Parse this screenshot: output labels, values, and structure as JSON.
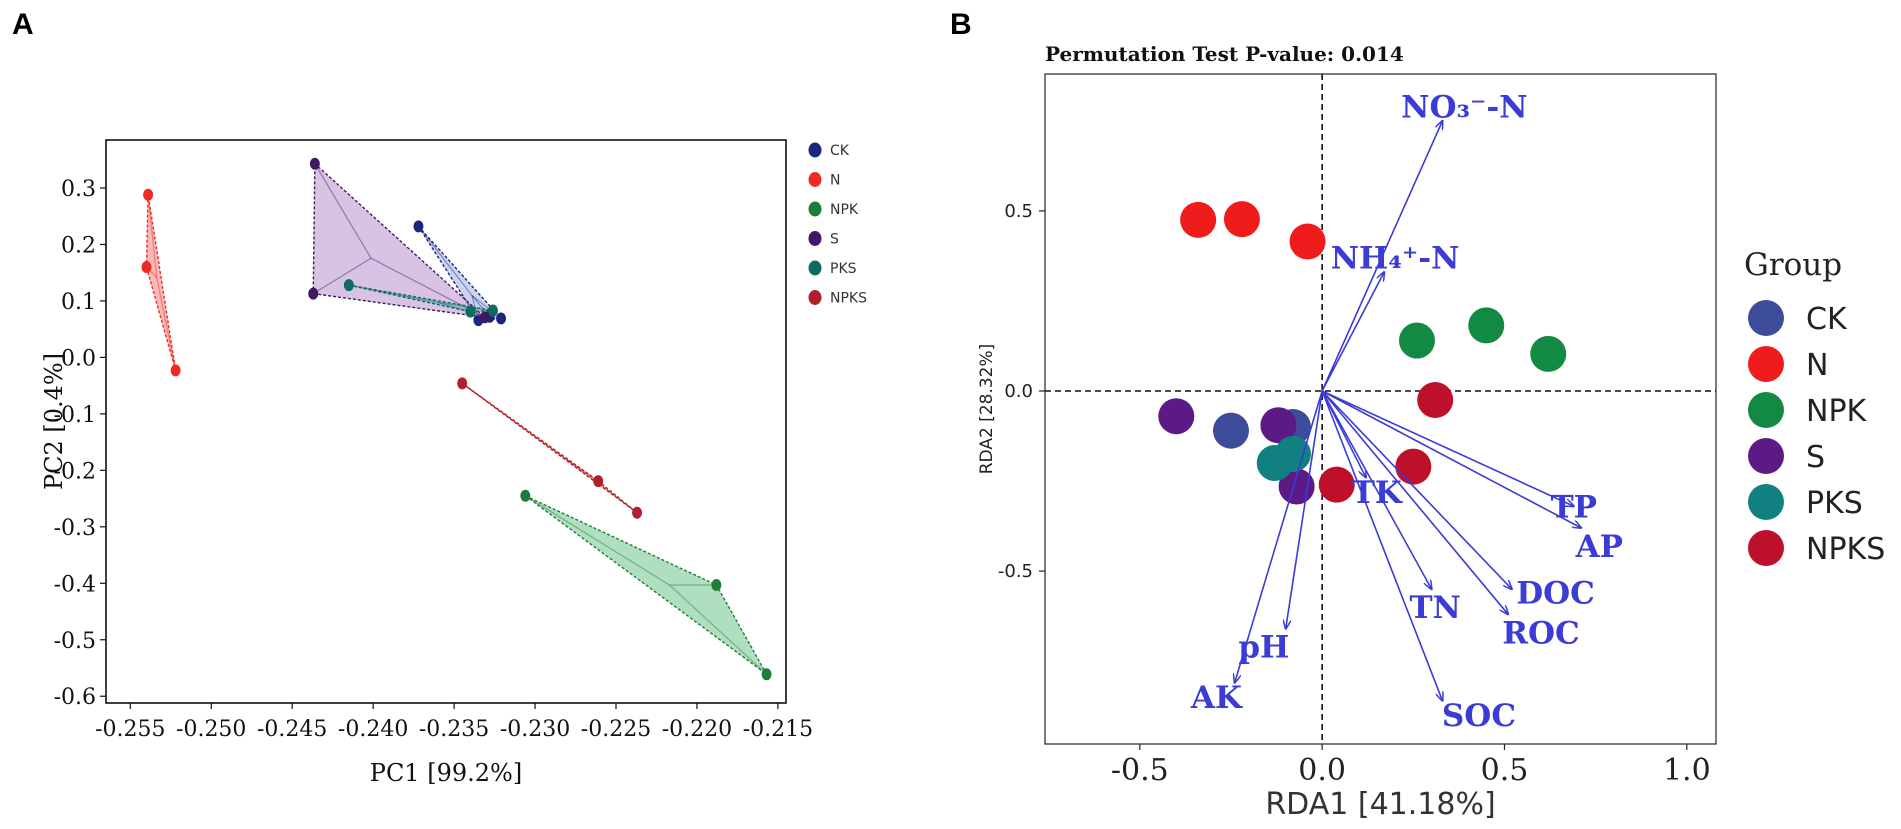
{
  "panel_labels": {
    "a": "A",
    "b": "B"
  },
  "chart_data": [
    {
      "type": "scatter",
      "panel": "A",
      "title": "",
      "xlabel": "PC1 [99.2%]",
      "ylabel": "PC2 [0.4%]",
      "xlim": [
        -0.2565,
        -0.2145
      ],
      "ylim": [
        -0.612,
        0.385
      ],
      "xticks": [
        -0.255,
        -0.25,
        -0.245,
        -0.24,
        -0.235,
        -0.23,
        -0.225,
        -0.22,
        -0.215
      ],
      "xtick_labels": [
        "-0.255",
        "-0.250",
        "-0.245",
        "-0.240",
        "-0.235",
        "-0.230",
        "-0.225",
        "-0.220",
        "-0.215"
      ],
      "yticks": [
        0.3,
        0.2,
        0.1,
        0.0,
        -0.1,
        -0.2,
        -0.3,
        -0.4,
        -0.5,
        -0.6
      ],
      "ytick_labels": [
        "0.3",
        "0.2",
        "0.1",
        "0.0",
        "-0.1",
        "-0.2",
        "-0.3",
        "-0.4",
        "-0.5",
        "-0.6"
      ],
      "legend": "right",
      "groups": [
        {
          "name": "CK",
          "color": "#1a2580",
          "points": [
            [
              -0.2372,
              0.232
            ],
            [
              -0.2335,
              0.066
            ],
            [
              -0.2321,
              0.069
            ],
            [
              -0.2328,
              0.072
            ]
          ],
          "hull_fill": "#8fa0d6"
        },
        {
          "name": "N",
          "color": "#ee2a24",
          "points": [
            [
              -0.2539,
              0.288
            ],
            [
              -0.254,
              0.16
            ],
            [
              -0.2522,
              -0.023
            ]
          ],
          "hull_fill": "#ee6660"
        },
        {
          "name": "NPK",
          "color": "#1e7d36",
          "points": [
            [
              -0.2306,
              -0.245
            ],
            [
              -0.2188,
              -0.403
            ],
            [
              -0.2157,
              -0.561
            ]
          ],
          "hull_fill": "#4fb771"
        },
        {
          "name": "S",
          "color": "#3e1a63",
          "points": [
            [
              -0.2436,
              0.343
            ],
            [
              -0.2437,
              0.113
            ],
            [
              -0.2331,
              0.071
            ]
          ],
          "hull_fill": "#a979c4"
        },
        {
          "name": "PKS",
          "color": "#0f6a60",
          "points": [
            [
              -0.2415,
              0.128
            ],
            [
              -0.234,
              0.081
            ],
            [
              -0.2326,
              0.083
            ]
          ],
          "hull_fill": "#5aa49d"
        },
        {
          "name": "NPKS",
          "color": "#b0202a",
          "points": [
            [
              -0.2345,
              -0.046
            ],
            [
              -0.2261,
              -0.219
            ],
            [
              -0.2237,
              -0.275
            ]
          ],
          "hull_fill": "#e06169"
        }
      ]
    },
    {
      "type": "scatter",
      "panel": "B",
      "title": "Permutation Test P-value: 0.014",
      "xlabel": "RDA1 [41.18%]",
      "ylabel": "RDA2 [28.32%]",
      "xlim": [
        -0.76,
        1.08
      ],
      "ylim": [
        -0.98,
        0.88
      ],
      "xticks": [
        -0.5,
        0.0,
        0.5,
        1.0
      ],
      "xtick_labels": [
        "-0.5",
        "0.0",
        "0.5",
        "1.0"
      ],
      "yticks": [
        0.5,
        0.0,
        -0.5
      ],
      "ytick_labels": [
        "0.5",
        "0.0",
        "-0.5"
      ],
      "legend_title": "Group",
      "legend": "right",
      "groups": [
        {
          "name": "CK",
          "color": "#3d4c99",
          "points": [
            [
              -0.25,
              -0.11
            ],
            [
              -0.08,
              -0.1
            ]
          ]
        },
        {
          "name": "N",
          "color": "#f01c1c",
          "points": [
            [
              -0.34,
              0.475
            ],
            [
              -0.22,
              0.477
            ],
            [
              -0.04,
              0.415
            ]
          ]
        },
        {
          "name": "NPK",
          "color": "#138a44",
          "points": [
            [
              0.26,
              0.14
            ],
            [
              0.45,
              0.182
            ],
            [
              0.62,
              0.103
            ]
          ]
        },
        {
          "name": "S",
          "color": "#5c1a86",
          "points": [
            [
              -0.4,
              -0.07
            ],
            [
              -0.12,
              -0.095
            ],
            [
              -0.07,
              -0.265
            ]
          ]
        },
        {
          "name": "PKS",
          "color": "#108080",
          "points": [
            [
              -0.13,
              -0.2
            ],
            [
              -0.08,
              -0.175
            ]
          ]
        },
        {
          "name": "NPKS",
          "color": "#be0f2b",
          "points": [
            [
              0.31,
              -0.025
            ],
            [
              0.25,
              -0.21
            ],
            [
              0.04,
              -0.26
            ]
          ]
        }
      ],
      "vectors": [
        {
          "label": "NO₃⁻-N",
          "x": 0.33,
          "y": 0.75,
          "label_x": 0.39,
          "label_y": 0.79
        },
        {
          "label": "NH₄⁺-N",
          "x": 0.17,
          "y": 0.33,
          "label_x": 0.2,
          "label_y": 0.37
        },
        {
          "label": "TK",
          "x": 0.12,
          "y": -0.24,
          "label_x": 0.15,
          "label_y": -0.28
        },
        {
          "label": "TP",
          "x": 0.69,
          "y": -0.32,
          "label_x": 0.69,
          "label_y": -0.32
        },
        {
          "label": "AP",
          "x": 0.71,
          "y": -0.38,
          "label_x": 0.76,
          "label_y": -0.43
        },
        {
          "label": "DOC",
          "x": 0.52,
          "y": -0.55,
          "label_x": 0.64,
          "label_y": -0.56
        },
        {
          "label": "ROC",
          "x": 0.51,
          "y": -0.62,
          "label_x": 0.6,
          "label_y": -0.67
        },
        {
          "label": "TN",
          "x": 0.3,
          "y": -0.55,
          "label_x": 0.31,
          "label_y": -0.6
        },
        {
          "label": "SOC",
          "x": 0.33,
          "y": -0.86,
          "label_x": 0.43,
          "label_y": -0.9
        },
        {
          "label": "pH",
          "x": -0.1,
          "y": -0.66,
          "label_x": -0.16,
          "label_y": -0.71
        },
        {
          "label": "AK",
          "x": -0.24,
          "y": -0.81,
          "label_x": -0.29,
          "label_y": -0.85
        }
      ]
    }
  ]
}
